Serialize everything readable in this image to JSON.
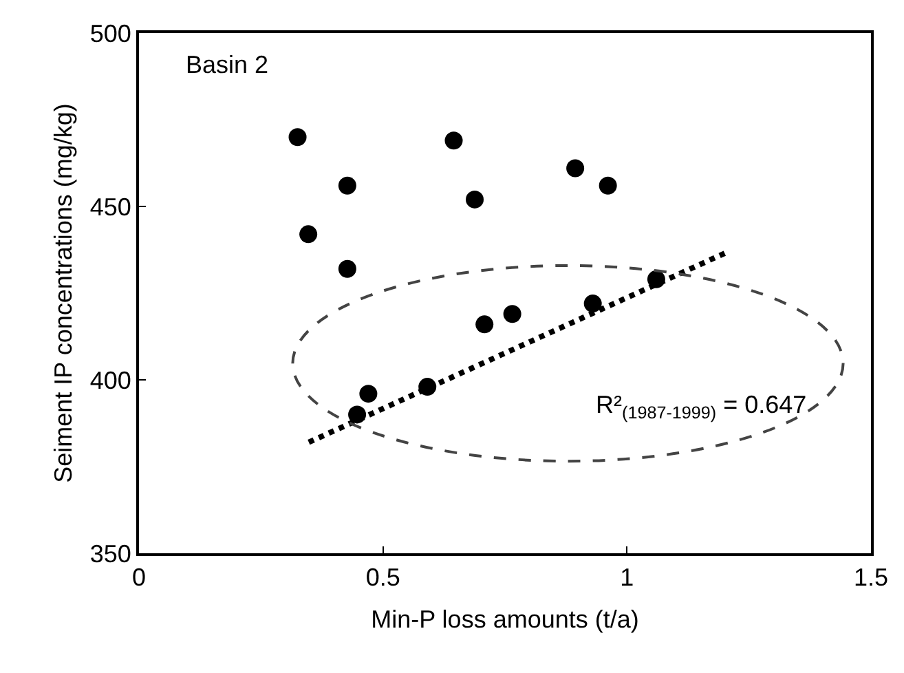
{
  "chart_data": {
    "type": "scatter",
    "xlabel": "Min-P loss amounts (t/a)",
    "ylabel": "Seiment IP concentrations (mg/kg)",
    "annotations": [
      "Basin 2",
      "R²$_{(1987-1999)}$ = 0.647"
    ],
    "xlim": [
      0,
      1.5
    ],
    "xticks": [
      0,
      0.5,
      1,
      1.5
    ],
    "ylim": [
      350,
      500
    ],
    "yticks": [
      350,
      400,
      450,
      500
    ],
    "series": [
      {
        "color": "#000000",
        "marker": "circle",
        "x": [
          0.325,
          0.645,
          0.427,
          0.688,
          0.347,
          0.427,
          0.708,
          0.765,
          0.47,
          0.447,
          0.591,
          0.894,
          0.961,
          0.93,
          1.06
        ],
        "values": [
          470,
          469,
          456,
          452,
          442,
          432,
          416,
          419,
          396,
          390,
          398,
          461,
          456,
          422,
          429
        ]
      },
      {
        "type": "line",
        "color": "#000000",
        "marker": "none",
        "line_style": "dotted",
        "x": [
          0.348,
          1.208
        ],
        "values": [
          382,
          437
        ]
      }
    ]
  }
}
